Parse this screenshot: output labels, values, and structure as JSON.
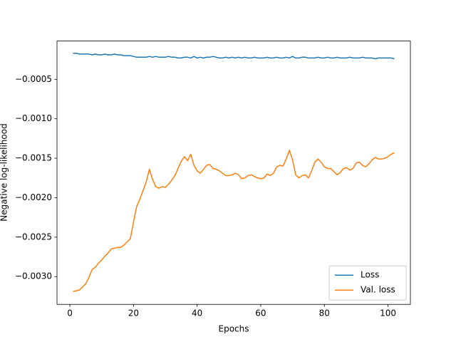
{
  "chart_data": {
    "type": "line",
    "xlabel": "Epochs",
    "ylabel": "Negative log-likelihood",
    "x": [
      1,
      2,
      3,
      4,
      5,
      6,
      7,
      8,
      9,
      10,
      11,
      12,
      13,
      14,
      15,
      16,
      17,
      18,
      19,
      20,
      21,
      22,
      23,
      24,
      25,
      26,
      27,
      28,
      29,
      30,
      31,
      32,
      33,
      34,
      35,
      36,
      37,
      38,
      39,
      40,
      41,
      42,
      43,
      44,
      45,
      46,
      47,
      48,
      49,
      50,
      51,
      52,
      53,
      54,
      55,
      56,
      57,
      58,
      59,
      60,
      61,
      62,
      63,
      64,
      65,
      66,
      67,
      68,
      69,
      70,
      71,
      72,
      73,
      74,
      75,
      76,
      77,
      78,
      79,
      80,
      81,
      82,
      83,
      84,
      85,
      86,
      87,
      88,
      89,
      90,
      91,
      92,
      93,
      94,
      95,
      96,
      97,
      98,
      99,
      100,
      101,
      102
    ],
    "series": [
      {
        "name": "Loss",
        "color": "#1f77b4",
        "values": [
          -0.00017,
          -0.00017,
          -0.00018,
          -0.00018,
          -0.00018,
          -0.00018,
          -0.00019,
          -0.00018,
          -0.00019,
          -0.00019,
          -0.00018,
          -0.00019,
          -0.00019,
          -0.00018,
          -0.00019,
          -0.00019,
          -0.0002,
          -0.0002,
          -0.0002,
          -0.00021,
          -0.00022,
          -0.00022,
          -0.00022,
          -0.00022,
          -0.00021,
          -0.00022,
          -0.00021,
          -0.00022,
          -0.00022,
          -0.00022,
          -0.00021,
          -0.00022,
          -0.00022,
          -0.00023,
          -0.00023,
          -0.00022,
          -0.00022,
          -0.00023,
          -0.00021,
          -0.00023,
          -0.00022,
          -0.00023,
          -0.00022,
          -0.00022,
          -0.00021,
          -0.00022,
          -0.00023,
          -0.00023,
          -0.00022,
          -0.00023,
          -0.00022,
          -0.00023,
          -0.00022,
          -0.00023,
          -0.00022,
          -0.00023,
          -0.00023,
          -0.00022,
          -0.00023,
          -0.00023,
          -0.00023,
          -0.00022,
          -0.00023,
          -0.00023,
          -0.00022,
          -0.00023,
          -0.00023,
          -0.00022,
          -0.00023,
          -0.00021,
          -0.00023,
          -0.00023,
          -0.00022,
          -0.00022,
          -0.00023,
          -0.00023,
          -0.00023,
          -0.00022,
          -0.00023,
          -0.00023,
          -0.00022,
          -0.00023,
          -0.00023,
          -0.00022,
          -0.00023,
          -0.00023,
          -0.00023,
          -0.00022,
          -0.00023,
          -0.00023,
          -0.00023,
          -0.00022,
          -0.00023,
          -0.00023,
          -0.00023,
          -0.00024,
          -0.00023,
          -0.00023,
          -0.00023,
          -0.00023,
          -0.00023,
          -0.00024
        ]
      },
      {
        "name": "Val. loss",
        "color": "#ff7f0e",
        "values": [
          -0.00319,
          -0.00318,
          -0.00317,
          -0.00313,
          -0.00309,
          -0.00301,
          -0.00291,
          -0.00288,
          -0.00283,
          -0.00279,
          -0.00274,
          -0.0027,
          -0.00265,
          -0.00264,
          -0.00263,
          -0.00263,
          -0.0026,
          -0.00256,
          -0.00252,
          -0.00231,
          -0.00211,
          -0.00202,
          -0.00191,
          -0.0018,
          -0.00164,
          -0.00177,
          -0.00186,
          -0.00188,
          -0.00186,
          -0.00187,
          -0.00183,
          -0.00178,
          -0.00172,
          -0.00163,
          -0.00154,
          -0.00148,
          -0.00153,
          -0.00145,
          -0.00159,
          -0.00166,
          -0.00169,
          -0.00164,
          -0.00159,
          -0.00158,
          -0.00163,
          -0.00164,
          -0.00166,
          -0.00169,
          -0.00172,
          -0.00172,
          -0.00171,
          -0.00169,
          -0.00171,
          -0.00176,
          -0.00175,
          -0.00172,
          -0.00171,
          -0.00173,
          -0.00175,
          -0.00176,
          -0.00175,
          -0.0017,
          -0.00172,
          -0.00169,
          -0.00161,
          -0.00159,
          -0.0016,
          -0.00151,
          -0.0014,
          -0.00152,
          -0.00171,
          -0.00175,
          -0.00172,
          -0.00171,
          -0.00175,
          -0.00166,
          -0.00155,
          -0.00151,
          -0.00155,
          -0.00161,
          -0.00163,
          -0.00163,
          -0.00167,
          -0.00171,
          -0.00168,
          -0.00163,
          -0.00162,
          -0.00165,
          -0.00163,
          -0.00156,
          -0.00155,
          -0.00159,
          -0.00161,
          -0.00157,
          -0.00152,
          -0.00149,
          -0.00151,
          -0.00151,
          -0.0015,
          -0.00148,
          -0.00145,
          -0.00143
        ]
      }
    ],
    "xlim": [
      -4.05,
      107.05
    ],
    "ylim": [
      -0.003352,
      -1.5e-05
    ],
    "xticks": [
      0,
      20,
      40,
      60,
      80,
      100
    ],
    "yticks": [
      {
        "value": -0.003,
        "label": "−0.0030"
      },
      {
        "value": -0.0025,
        "label": "−0.0025"
      },
      {
        "value": -0.002,
        "label": "−0.0020"
      },
      {
        "value": -0.0015,
        "label": "−0.0015"
      },
      {
        "value": -0.001,
        "label": "−0.0010"
      },
      {
        "value": -0.0005,
        "label": "−0.0005"
      }
    ],
    "grid": false,
    "legend": "lower right"
  }
}
